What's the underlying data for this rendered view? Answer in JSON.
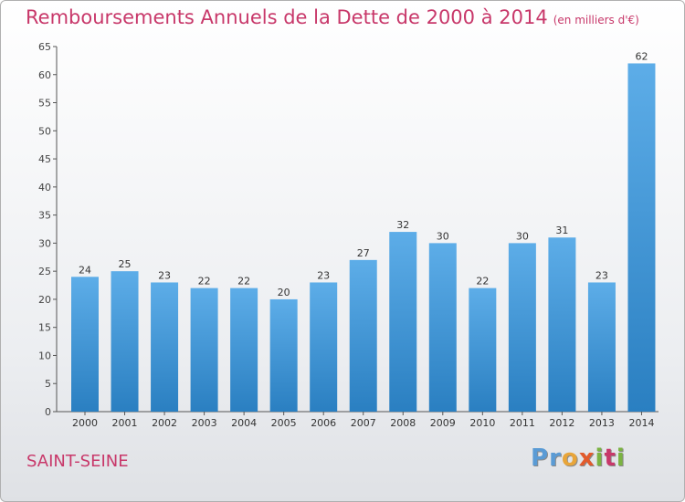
{
  "header": {
    "title": "Remboursements Annuels de la Dette de 2000 à 2014",
    "subtitle": "(en milliers d'€)"
  },
  "footer": {
    "city": "SAINT-SEINE",
    "logo": "Proxiti"
  },
  "colors": {
    "bar_light": "#5dade8",
    "bar_dark": "#2a7fc1",
    "title": "#c8386a"
  },
  "chart_data": {
    "type": "bar",
    "categories": [
      "2000",
      "2001",
      "2002",
      "2003",
      "2004",
      "2005",
      "2006",
      "2007",
      "2008",
      "2009",
      "2010",
      "2011",
      "2012",
      "2013",
      "2014"
    ],
    "values": [
      24,
      25,
      23,
      22,
      22,
      20,
      23,
      27,
      32,
      30,
      22,
      30,
      31,
      23,
      62
    ],
    "title": "Remboursements Annuels de la Dette de 2000 à 2014",
    "subtitle": "(en milliers d'€)",
    "ylim": [
      0,
      65
    ],
    "yticks": [
      0,
      5,
      10,
      15,
      20,
      25,
      30,
      35,
      40,
      45,
      50,
      55,
      60,
      65
    ],
    "grid": false,
    "data_labels": true
  }
}
